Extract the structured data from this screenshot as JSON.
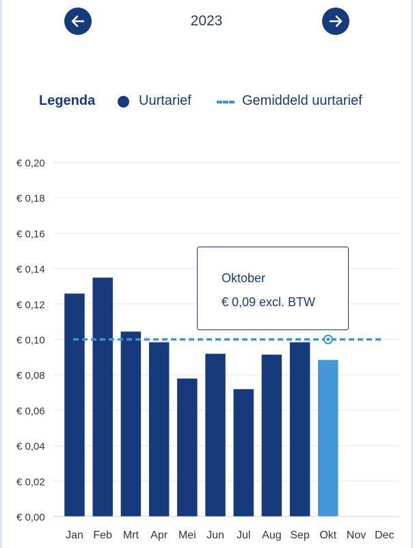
{
  "header": {
    "year": "2023",
    "prev_icon": "arrow-left-icon",
    "next_icon": "arrow-right-icon"
  },
  "legend": {
    "title": "Legenda",
    "series_label": "Uurtarief",
    "average_label": "Gemiddeld uurtarief"
  },
  "tooltip": {
    "month": "Oktober",
    "value_text": "€ 0,09 excl. BTW"
  },
  "colors": {
    "bar": "#173a7d",
    "highlight_bar": "#4497d7",
    "average_line": "#3c93d6",
    "grid": "#e6e6e6"
  },
  "chart_data": {
    "type": "bar",
    "categories": [
      "Jan",
      "Feb",
      "Mrt",
      "Apr",
      "Mei",
      "Jun",
      "Jul",
      "Aug",
      "Sep",
      "Okt",
      "Nov",
      "Dec"
    ],
    "series": [
      {
        "name": "Uurtarief",
        "values": [
          0.126,
          0.135,
          0.1045,
          0.0985,
          0.078,
          0.092,
          0.072,
          0.0915,
          0.0985,
          0.0885,
          null,
          null
        ]
      }
    ],
    "highlighted_index": 9,
    "average": {
      "name": "Gemiddeld uurtarief",
      "value": 0.1
    },
    "yticks": [
      0.0,
      0.02,
      0.04,
      0.06,
      0.08,
      0.1,
      0.12,
      0.14,
      0.16,
      0.18,
      0.2
    ],
    "ytick_labels": [
      "€ 0,00",
      "€ 0,02",
      "€ 0,04",
      "€ 0,06",
      "€ 0,08",
      "€ 0,10",
      "€ 0,12",
      "€ 0,14",
      "€ 0,16",
      "€ 0,18",
      "€ 0,20"
    ],
    "ylim": [
      0,
      0.2
    ],
    "grid": true,
    "legend_position": "top"
  }
}
